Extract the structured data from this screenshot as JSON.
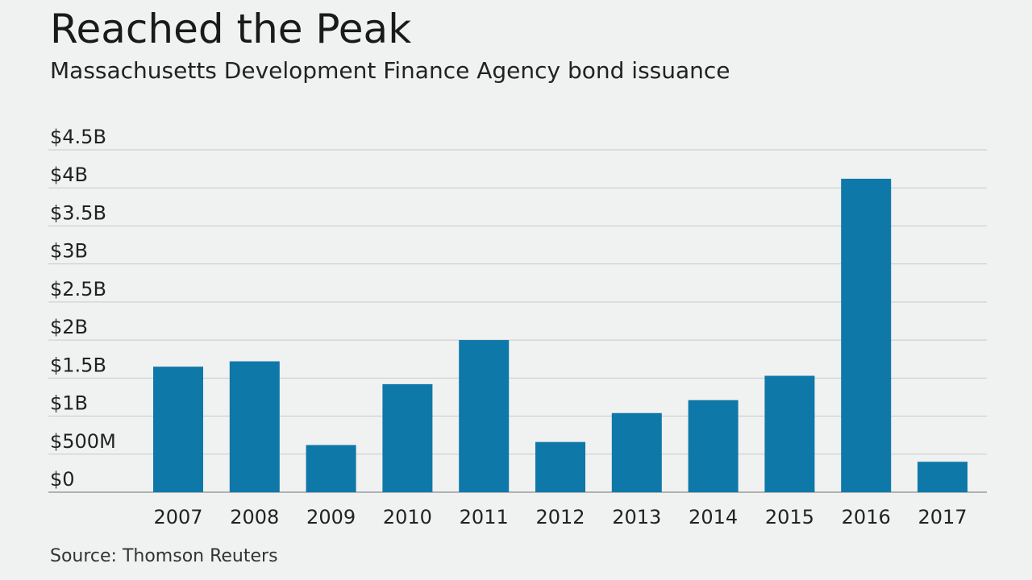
{
  "chart_title": "Reached the Peak",
  "chart_subtitle": "Massachusetts Development Finance Agency bond issuance",
  "source_text": "Source: Thomson Reuters",
  "colors": {
    "bar": "#0e78a8",
    "grid": "#c8cacb",
    "background": "#f0f1f1",
    "text": "#222222"
  },
  "chart_data": {
    "type": "bar",
    "title": "Reached the Peak",
    "subtitle": "Massachusetts Development Finance Agency bond issuance",
    "xlabel": "",
    "ylabel": "",
    "categories": [
      "2007",
      "2008",
      "2009",
      "2010",
      "2011",
      "2012",
      "2013",
      "2014",
      "2015",
      "2016",
      "2017"
    ],
    "values": [
      1.65,
      1.72,
      0.62,
      1.42,
      2.0,
      0.66,
      1.04,
      1.21,
      1.53,
      4.12,
      0.4
    ],
    "value_units": "billions of dollars",
    "ylim": [
      0,
      4.5
    ],
    "yticks": [
      0,
      0.5,
      1,
      1.5,
      2,
      2.5,
      3,
      3.5,
      4,
      4.5
    ],
    "ytick_labels": [
      "$0",
      "$500M",
      "$1B",
      "$1.5B",
      "$2B",
      "$2.5B",
      "$3B",
      "$3.5B",
      "$4B",
      "$4.5B"
    ],
    "grid": true,
    "legend": "none"
  }
}
